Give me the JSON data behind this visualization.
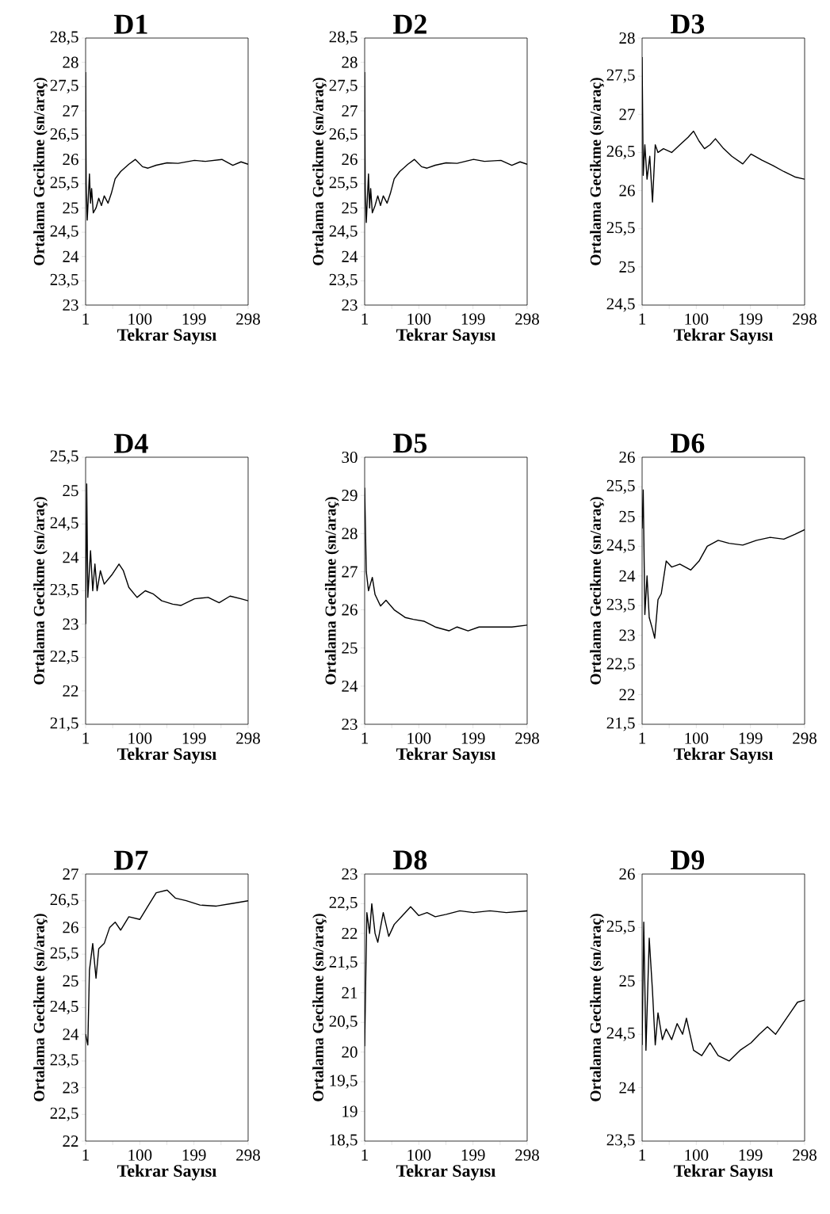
{
  "chart_data": [
    {
      "type": "line",
      "title": "D1",
      "xlabel": "Tekrar Sayısı",
      "ylabel": "Ortalama Gecikme (sn/araç)",
      "color": "#000000",
      "xlim": [
        1,
        298
      ],
      "xticks": [
        1,
        {
          "value": 50.5,
          "label": null
        },
        100,
        {
          "value": 149.5,
          "label": null
        },
        199,
        {
          "value": 248.5,
          "label": null
        },
        298
      ],
      "ylim": [
        23,
        28.5
      ],
      "yticks": [
        23,
        {
          "value": 23.5,
          "label": "23,5"
        },
        24,
        {
          "value": 24.5,
          "label": "24,5"
        },
        25,
        {
          "value": 25.5,
          "label": "25,5"
        },
        26,
        {
          "value": 26.5,
          "label": "26,5"
        },
        27,
        {
          "value": 27.5,
          "label": "27,5"
        },
        28,
        {
          "value": 28.5,
          "label": "28,5"
        }
      ],
      "x": [
        1,
        2,
        4,
        8,
        10,
        12,
        15,
        20,
        25,
        30,
        35,
        42,
        48,
        55,
        65,
        80,
        92,
        105,
        115,
        130,
        150,
        170,
        200,
        220,
        250,
        270,
        285,
        298
      ],
      "values": [
        27.8,
        25.5,
        24.75,
        25.7,
        25.1,
        25.4,
        24.9,
        25.0,
        25.2,
        25.05,
        25.25,
        25.1,
        25.3,
        25.6,
        25.75,
        25.9,
        26.0,
        25.85,
        25.82,
        25.88,
        25.93,
        25.92,
        25.98,
        25.96,
        26.0,
        25.88,
        25.95,
        25.9
      ]
    },
    {
      "type": "line",
      "title": "D2",
      "xlabel": "Tekrar Sayısı",
      "ylabel": "Ortalama Gecikme (sn/araç)",
      "color": "#000000",
      "xlim": [
        1,
        298
      ],
      "xticks": [
        1,
        {
          "value": 50.5,
          "label": null
        },
        100,
        {
          "value": 149.5,
          "label": null
        },
        199,
        {
          "value": 248.5,
          "label": null
        },
        298
      ],
      "ylim": [
        23,
        28.5
      ],
      "yticks": [
        23,
        {
          "value": 23.5,
          "label": "23,5"
        },
        24,
        {
          "value": 24.5,
          "label": "24,5"
        },
        25,
        {
          "value": 25.5,
          "label": "25,5"
        },
        26,
        {
          "value": 26.5,
          "label": "26,5"
        },
        27,
        {
          "value": 27.5,
          "label": "27,5"
        },
        28,
        {
          "value": 28.5,
          "label": "28,5"
        }
      ],
      "x": [
        1,
        2,
        4,
        8,
        10,
        12,
        15,
        20,
        25,
        30,
        35,
        42,
        48,
        55,
        65,
        80,
        92,
        105,
        115,
        130,
        150,
        170,
        200,
        220,
        250,
        270,
        285,
        298
      ],
      "values": [
        27.8,
        25.4,
        24.7,
        25.7,
        25.0,
        25.4,
        24.9,
        25.05,
        25.25,
        25.05,
        25.25,
        25.1,
        25.3,
        25.6,
        25.75,
        25.9,
        26.0,
        25.85,
        25.82,
        25.88,
        25.93,
        25.92,
        26.0,
        25.96,
        25.98,
        25.88,
        25.95,
        25.9
      ]
    },
    {
      "type": "line",
      "title": "D3",
      "xlabel": "Tekrar Sayısı",
      "ylabel": "Ortalama Gecikme (sn/araç)",
      "color": "#000000",
      "xlim": [
        1,
        298
      ],
      "xticks": [
        1,
        {
          "value": 50.5,
          "label": null
        },
        100,
        {
          "value": 149.5,
          "label": null
        },
        199,
        {
          "value": 248.5,
          "label": null
        },
        298
      ],
      "ylim": [
        24.5,
        28
      ],
      "yticks": [
        {
          "value": 24.5,
          "label": "24,5"
        },
        25,
        {
          "value": 25.5,
          "label": "25,5"
        },
        26,
        {
          "value": 26.5,
          "label": "26,5"
        },
        27,
        {
          "value": 27.5,
          "label": "27,5"
        },
        28
      ],
      "x": [
        1,
        3,
        6,
        10,
        15,
        20,
        25,
        30,
        40,
        55,
        70,
        85,
        95,
        105,
        115,
        125,
        135,
        150,
        165,
        185,
        200,
        220,
        240,
        260,
        280,
        298
      ],
      "values": [
        27.75,
        26.2,
        26.6,
        26.15,
        26.45,
        25.85,
        26.6,
        26.5,
        26.55,
        26.5,
        26.6,
        26.7,
        26.78,
        26.65,
        26.55,
        26.6,
        26.68,
        26.55,
        26.45,
        26.35,
        26.48,
        26.4,
        26.33,
        26.25,
        26.18,
        26.15
      ]
    },
    {
      "type": "line",
      "title": "D4",
      "xlabel": "Tekrar Sayısı",
      "ylabel": "Ortalama Gecikme (sn/araç)",
      "color": "#000000",
      "xlim": [
        1,
        298
      ],
      "xticks": [
        1,
        {
          "value": 50.5,
          "label": null
        },
        100,
        {
          "value": 149.5,
          "label": null
        },
        199,
        {
          "value": 248.5,
          "label": null
        },
        298
      ],
      "ylim": [
        21.5,
        25.5
      ],
      "yticks": [
        {
          "value": 21.5,
          "label": "21,5"
        },
        22,
        {
          "value": 22.5,
          "label": "22,5"
        },
        23,
        {
          "value": 23.5,
          "label": "23,5"
        },
        24,
        {
          "value": 24.5,
          "label": "24,5"
        },
        25,
        {
          "value": 25.5,
          "label": "25,5"
        }
      ],
      "x": [
        1,
        3,
        5,
        10,
        14,
        18,
        22,
        28,
        35,
        50,
        62,
        70,
        80,
        95,
        110,
        125,
        140,
        160,
        175,
        200,
        225,
        245,
        265,
        285,
        298
      ],
      "values": [
        23.0,
        25.1,
        23.4,
        24.1,
        23.5,
        23.9,
        23.5,
        23.8,
        23.6,
        23.75,
        23.9,
        23.8,
        23.55,
        23.4,
        23.5,
        23.45,
        23.35,
        23.3,
        23.28,
        23.38,
        23.4,
        23.32,
        23.42,
        23.38,
        23.35
      ]
    },
    {
      "type": "line",
      "title": "D5",
      "xlabel": "Tekrar Sayısı",
      "ylabel": "Ortalama Gecikme (sn/araç)",
      "color": "#000000",
      "xlim": [
        1,
        298
      ],
      "xticks": [
        1,
        {
          "value": 50.5,
          "label": null
        },
        100,
        {
          "value": 149.5,
          "label": null
        },
        199,
        {
          "value": 248.5,
          "label": null
        },
        298
      ],
      "ylim": [
        23,
        30
      ],
      "yticks": [
        23,
        24,
        25,
        26,
        27,
        28,
        29,
        30
      ],
      "x": [
        1,
        4,
        8,
        15,
        20,
        30,
        40,
        55,
        75,
        90,
        110,
        130,
        155,
        170,
        190,
        210,
        240,
        270,
        298
      ],
      "values": [
        29.2,
        27.0,
        26.5,
        26.85,
        26.4,
        26.1,
        26.25,
        26.0,
        25.8,
        25.75,
        25.7,
        25.55,
        25.45,
        25.55,
        25.45,
        25.55,
        25.55,
        25.55,
        25.6
      ]
    },
    {
      "type": "line",
      "title": "D6",
      "xlabel": "Tekrar Sayısı",
      "ylabel": "Ortalama Gecikme (sn/araç)",
      "color": "#000000",
      "xlim": [
        1,
        298
      ],
      "xticks": [
        1,
        {
          "value": 50.5,
          "label": null
        },
        100,
        {
          "value": 149.5,
          "label": null
        },
        199,
        {
          "value": 248.5,
          "label": null
        },
        298
      ],
      "ylim": [
        21.5,
        26
      ],
      "yticks": [
        {
          "value": 21.5,
          "label": "21,5"
        },
        22,
        {
          "value": 22.5,
          "label": "22,5"
        },
        23,
        {
          "value": 23.5,
          "label": "23,5"
        },
        24,
        {
          "value": 24.5,
          "label": "24,5"
        },
        25,
        {
          "value": 25.5,
          "label": "25,5"
        },
        26
      ],
      "x": [
        1,
        3,
        6,
        10,
        14,
        20,
        24,
        30,
        36,
        45,
        55,
        70,
        90,
        105,
        120,
        140,
        160,
        185,
        210,
        235,
        260,
        280,
        298
      ],
      "values": [
        24.8,
        25.45,
        23.35,
        24.0,
        23.3,
        23.1,
        22.95,
        23.6,
        23.7,
        24.25,
        24.15,
        24.2,
        24.1,
        24.25,
        24.5,
        24.6,
        24.55,
        24.52,
        24.6,
        24.65,
        24.62,
        24.7,
        24.78
      ]
    },
    {
      "type": "line",
      "title": "D7",
      "xlabel": "Tekrar Sayısı",
      "ylabel": "Ortalama Gecikme (sn/araç)",
      "color": "#000000",
      "xlim": [
        1,
        298
      ],
      "xticks": [
        1,
        {
          "value": 50.5,
          "label": null
        },
        100,
        {
          "value": 149.5,
          "label": null
        },
        199,
        {
          "value": 248.5,
          "label": null
        },
        298
      ],
      "ylim": [
        22,
        27
      ],
      "yticks": [
        22,
        {
          "value": 22.5,
          "label": "22,5"
        },
        23,
        {
          "value": 23.5,
          "label": "23,5"
        },
        24,
        {
          "value": 24.5,
          "label": "24,5"
        },
        25,
        {
          "value": 25.5,
          "label": "25,5"
        },
        26,
        {
          "value": 26.5,
          "label": "26,5"
        },
        27
      ],
      "x": [
        1,
        5,
        8,
        14,
        20,
        25,
        35,
        45,
        55,
        65,
        80,
        100,
        115,
        130,
        150,
        165,
        185,
        210,
        240,
        270,
        298
      ],
      "values": [
        24.0,
        23.8,
        25.2,
        25.7,
        25.05,
        25.6,
        25.7,
        26.0,
        26.1,
        25.95,
        26.2,
        26.15,
        26.4,
        26.65,
        26.7,
        26.55,
        26.5,
        26.42,
        26.4,
        26.45,
        26.5
      ]
    },
    {
      "type": "line",
      "title": "D8",
      "xlabel": "Tekrar Sayısı",
      "ylabel": "Ortalama Gecikme (sn/araç)",
      "color": "#000000",
      "xlim": [
        1,
        298
      ],
      "xticks": [
        1,
        {
          "value": 50.5,
          "label": null
        },
        100,
        {
          "value": 149.5,
          "label": null
        },
        199,
        {
          "value": 248.5,
          "label": null
        },
        298
      ],
      "ylim": [
        18.5,
        23
      ],
      "yticks": [
        {
          "value": 18.5,
          "label": "18,5"
        },
        19,
        {
          "value": 19.5,
          "label": "19,5"
        },
        20,
        {
          "value": 20.5,
          "label": "20,5"
        },
        21,
        {
          "value": 21.5,
          "label": "21,5"
        },
        22,
        {
          "value": 22.5,
          "label": "22,5"
        },
        23
      ],
      "x": [
        1,
        5,
        10,
        14,
        20,
        25,
        35,
        45,
        55,
        70,
        85,
        100,
        115,
        130,
        150,
        175,
        200,
        230,
        260,
        298
      ],
      "values": [
        20.1,
        22.35,
        22.0,
        22.5,
        22.0,
        21.85,
        22.35,
        21.95,
        22.15,
        22.3,
        22.45,
        22.3,
        22.35,
        22.28,
        22.32,
        22.38,
        22.35,
        22.38,
        22.35,
        22.38
      ]
    },
    {
      "type": "line",
      "title": "D9",
      "xlabel": "Tekrar Sayısı",
      "ylabel": "Ortalama Gecikme (sn/araç)",
      "color": "#000000",
      "xlim": [
        1,
        298
      ],
      "xticks": [
        1,
        {
          "value": 50.5,
          "label": null
        },
        100,
        {
          "value": 149.5,
          "label": null
        },
        199,
        {
          "value": 248.5,
          "label": null
        },
        298
      ],
      "ylim": [
        23.5,
        26
      ],
      "yticks": [
        {
          "value": 23.5,
          "label": "23,5"
        },
        24,
        {
          "value": 24.5,
          "label": "24,5"
        },
        25,
        {
          "value": 25.5,
          "label": "25,5"
        },
        26
      ],
      "x": [
        1,
        4,
        8,
        14,
        20,
        25,
        30,
        38,
        45,
        55,
        65,
        75,
        82,
        95,
        110,
        125,
        140,
        160,
        180,
        200,
        215,
        230,
        245,
        265,
        285,
        298
      ],
      "values": [
        24.4,
        25.55,
        24.35,
        25.4,
        24.9,
        24.4,
        24.7,
        24.45,
        24.55,
        24.45,
        24.6,
        24.5,
        24.65,
        24.35,
        24.3,
        24.42,
        24.3,
        24.25,
        24.35,
        24.42,
        24.5,
        24.57,
        24.5,
        24.65,
        24.8,
        24.82
      ]
    }
  ]
}
